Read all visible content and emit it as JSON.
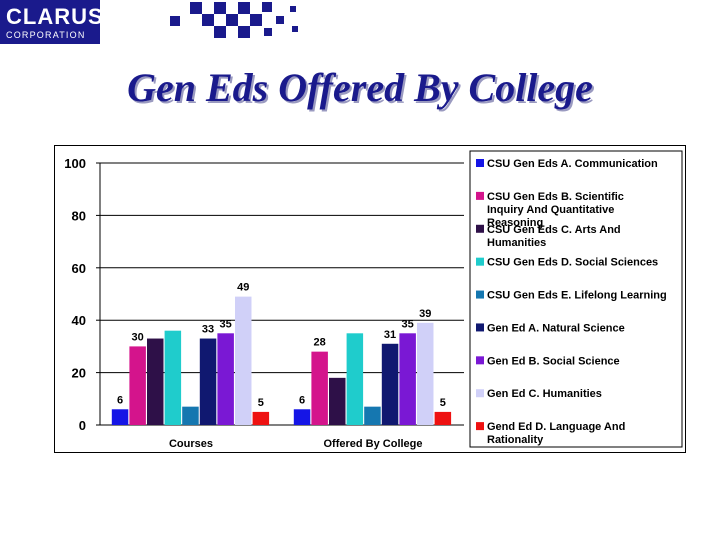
{
  "logo": {
    "name": "CLARUS",
    "sub": "CORPORATION"
  },
  "slide": {
    "title": "Gen Eds Offered By College"
  },
  "colors": {
    "brand": "#1a1a8c"
  },
  "chart_data": {
    "type": "bar",
    "categories": [
      "Courses",
      "Offered By College"
    ],
    "ylim": [
      0,
      100
    ],
    "yticks": [
      0,
      20,
      40,
      60,
      80,
      100
    ],
    "grid": true,
    "legend_position": "right",
    "series": [
      {
        "name": "CSU Gen Eds A. Communication",
        "color": "#1515e6",
        "values": [
          6,
          6
        ],
        "labels": [
          "6",
          "6"
        ]
      },
      {
        "name": "CSU Gen Eds B. Scientific Inquiry And Quantitative Reasoning",
        "color": "#d4148c",
        "values": [
          30,
          28
        ],
        "labels": [
          "30",
          "28"
        ]
      },
      {
        "name": "CSU Gen Eds C. Arts And Humanities",
        "color": "#2e1048",
        "values": [
          33,
          18
        ],
        "labels": [
          "",
          ""
        ]
      },
      {
        "name": "CSU Gen Eds D. Social Sciences",
        "color": "#1fcccc",
        "values": [
          36,
          35
        ],
        "labels": [
          "",
          ""
        ]
      },
      {
        "name": "CSU Gen Eds E. Lifelong Learning",
        "color": "#1577b0",
        "values": [
          7,
          7
        ],
        "labels": [
          "",
          ""
        ]
      },
      {
        "name": "Gen Ed A. Natural Science",
        "color": "#101870",
        "values": [
          33,
          31
        ],
        "labels": [
          "33",
          "31"
        ]
      },
      {
        "name": "Gen Ed B. Social Science",
        "color": "#7a18d4",
        "values": [
          35,
          35
        ],
        "labels": [
          "35",
          "35"
        ]
      },
      {
        "name": "Gen Ed C. Humanities",
        "color": "#d0d0f8",
        "values": [
          49,
          39
        ],
        "labels": [
          "49",
          "39"
        ]
      },
      {
        "name": "Gend Ed D. Language And Rationality",
        "color": "#ee1111",
        "values": [
          5,
          5
        ],
        "labels": [
          "5",
          "5"
        ]
      }
    ]
  }
}
